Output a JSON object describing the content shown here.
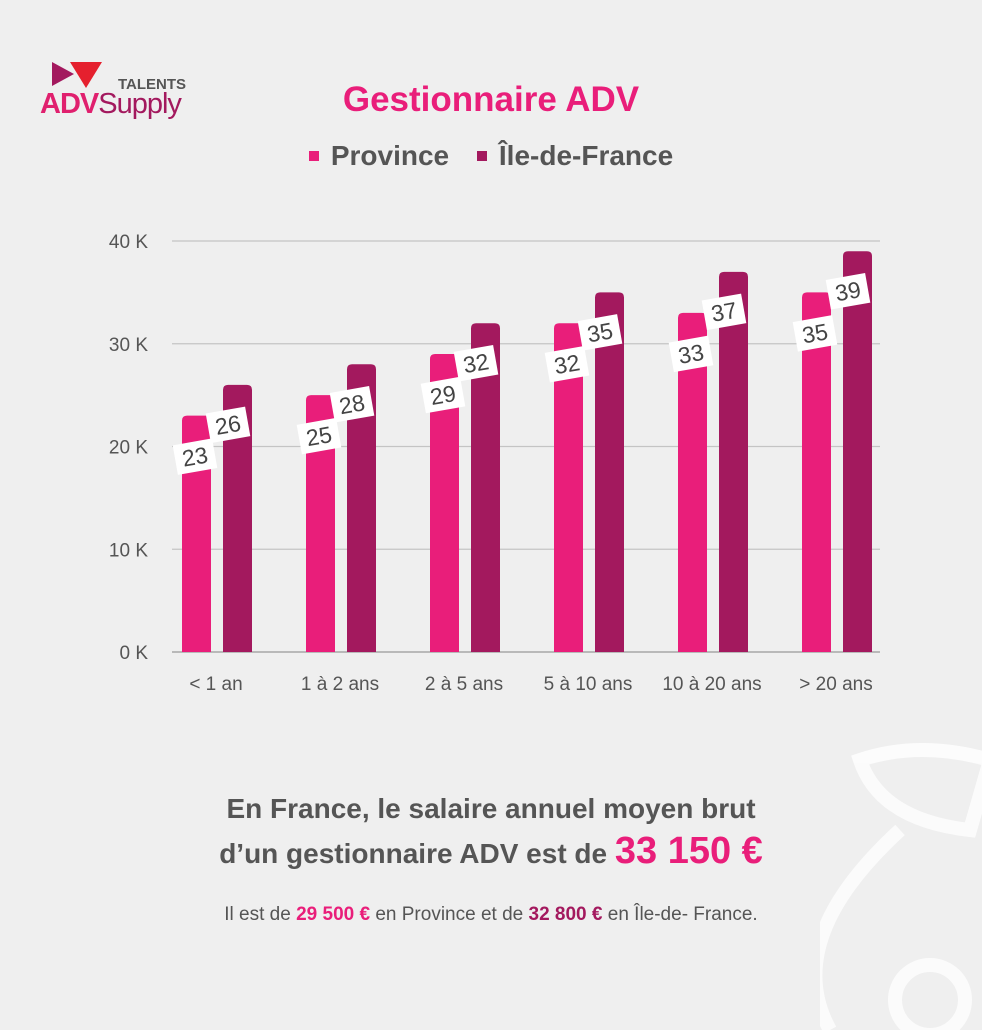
{
  "logo": {
    "top": "TALENTS",
    "brand_a": "ADV",
    "brand_b": "Supply"
  },
  "colors": {
    "province": "#e91e7a",
    "idf": "#a3195e",
    "background": "#efefef"
  },
  "chart_data": {
    "type": "bar",
    "title": "Gestionnaire ADV",
    "categories": [
      "< 1 an",
      "1 à 2 ans",
      "2 à 5 ans",
      "5 à 10 ans",
      "10 à 20 ans",
      ">  20 ans"
    ],
    "series": [
      {
        "name": "Province",
        "values": [
          23,
          25,
          29,
          32,
          33,
          35
        ]
      },
      {
        "name": "Île-de-France",
        "values": [
          26,
          28,
          32,
          35,
          37,
          39
        ]
      }
    ],
    "yticks": [
      "0 K",
      "10 K",
      "20 K",
      "30 K",
      "40 K"
    ],
    "ylim": [
      0,
      40
    ],
    "grid": true,
    "legend": "top"
  },
  "summary": {
    "line1": "En France, le salaire annuel moyen brut",
    "line2": "d’un gestionnaire ADV est de ",
    "amount": "33 150 €"
  },
  "detail": {
    "p1": "Il est de ",
    "province_amount": "29 500 €",
    "p2": " en Province et de ",
    "idf_amount": "32 800 €",
    "p3": " en Île-de- France."
  }
}
